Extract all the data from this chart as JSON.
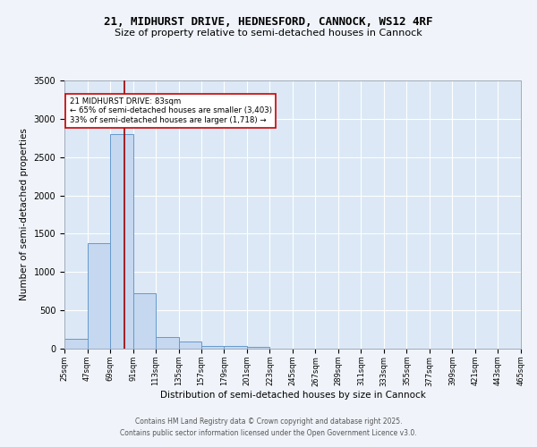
{
  "title_line1": "21, MIDHURST DRIVE, HEDNESFORD, CANNOCK, WS12 4RF",
  "title_line2": "Size of property relative to semi-detached houses in Cannock",
  "xlabel": "Distribution of semi-detached houses by size in Cannock",
  "ylabel": "Number of semi-detached properties",
  "bin_starts": [
    25,
    47,
    69,
    91,
    113,
    135,
    157,
    179,
    201,
    223,
    245,
    267,
    289,
    311,
    333,
    355,
    377,
    399,
    421,
    443
  ],
  "bin_width": 22,
  "bar_heights": [
    130,
    1380,
    2800,
    720,
    155,
    90,
    40,
    35,
    20,
    0,
    0,
    0,
    0,
    0,
    0,
    0,
    0,
    0,
    0,
    0
  ],
  "bar_color": "#c5d8f0",
  "bar_edge_color": "#6699cc",
  "property_size": 83,
  "red_line_color": "#990000",
  "ylim": [
    0,
    3500
  ],
  "yticks": [
    0,
    500,
    1000,
    1500,
    2000,
    2500,
    3000,
    3500
  ],
  "background_color": "#dce8f5",
  "fig_background": "#f0f4fa",
  "grid_color": "#ffffff",
  "annotation_text": "21 MIDHURST DRIVE: 83sqm\n← 65% of semi-detached houses are smaller (3,403)\n33% of semi-detached houses are larger (1,718) →",
  "annotation_box_color": "#ffffff",
  "annotation_box_edge": "#cc0000",
  "footer_line1": "Contains HM Land Registry data © Crown copyright and database right 2025.",
  "footer_line2": "Contains public sector information licensed under the Open Government Licence v3.0.",
  "tick_labels": [
    "25sqm",
    "47sqm",
    "69sqm",
    "91sqm",
    "113sqm",
    "135sqm",
    "157sqm",
    "179sqm",
    "201sqm",
    "223sqm",
    "245sqm",
    "267sqm",
    "289sqm",
    "311sqm",
    "333sqm",
    "355sqm",
    "377sqm",
    "399sqm",
    "421sqm",
    "443sqm",
    "465sqm"
  ]
}
